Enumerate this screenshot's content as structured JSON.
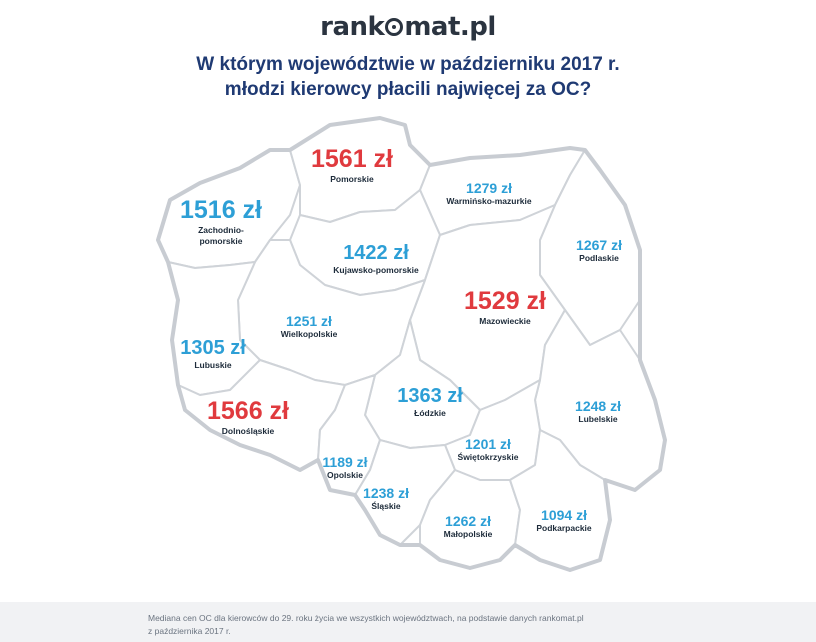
{
  "logo": "rankomat.pl",
  "title": {
    "line1": "W którym województwie w październiku 2017 r.",
    "line2": "młodzi kierowcy płacili najwięcej za OC?"
  },
  "regions": {
    "pomorskie": {
      "price": "1561 zł",
      "name": "Pomorskie",
      "color": "#e03a3e"
    },
    "zachodniopomorskie": {
      "price": "1516 zł",
      "name1": "Zachodnio-",
      "name2": "pomorskie",
      "color": "#2d9fd6"
    },
    "warminsko": {
      "price": "1279 zł",
      "name": "Warmińsko-mazurkie",
      "color": "#2d9fd6"
    },
    "kujawsko": {
      "price": "1422 zł",
      "name": "Kujawsko-pomorskie",
      "color": "#2d9fd6"
    },
    "podlaskie": {
      "price": "1267 zł",
      "name": "Podlaskie",
      "color": "#2d9fd6"
    },
    "mazowieckie": {
      "price": "1529 zł",
      "name": "Mazowieckie",
      "color": "#e03a3e"
    },
    "wielkopolskie": {
      "price": "1251 zł",
      "name": "Wielkopolskie",
      "color": "#2d9fd6"
    },
    "lubuskie": {
      "price": "1305 zł",
      "name": "Lubuskie",
      "color": "#2d9fd6"
    },
    "lodzkie": {
      "price": "1363 zł",
      "name": "Łódzkie",
      "color": "#2d9fd6"
    },
    "lubelskie": {
      "price": "1248 zł",
      "name": "Lubelskie",
      "color": "#2d9fd6"
    },
    "dolnoslaskie": {
      "price": "1566 zł",
      "name": "Dolnośląskie",
      "color": "#e03a3e"
    },
    "swietokrzyskie": {
      "price": "1201 zł",
      "name": "Świętokrzyskie",
      "color": "#2d9fd6"
    },
    "opolskie": {
      "price": "1189 zł",
      "name": "Opolskie",
      "color": "#2d9fd6"
    },
    "slaskie": {
      "price": "1238 zł",
      "name": "Śląskie",
      "color": "#2d9fd6"
    },
    "malopolskie": {
      "price": "1262 zł",
      "name": "Małopolskie",
      "color": "#2d9fd6"
    },
    "podkarpackie": {
      "price": "1094 zł",
      "name": "Podkarpackie",
      "color": "#2d9fd6"
    }
  },
  "footer": {
    "line1": "Mediana cen OC dla kierowców do 29. roku życia we wszystkich województwach, na podstawie danych rankomat.pl",
    "line2": "z października 2017 r."
  }
}
